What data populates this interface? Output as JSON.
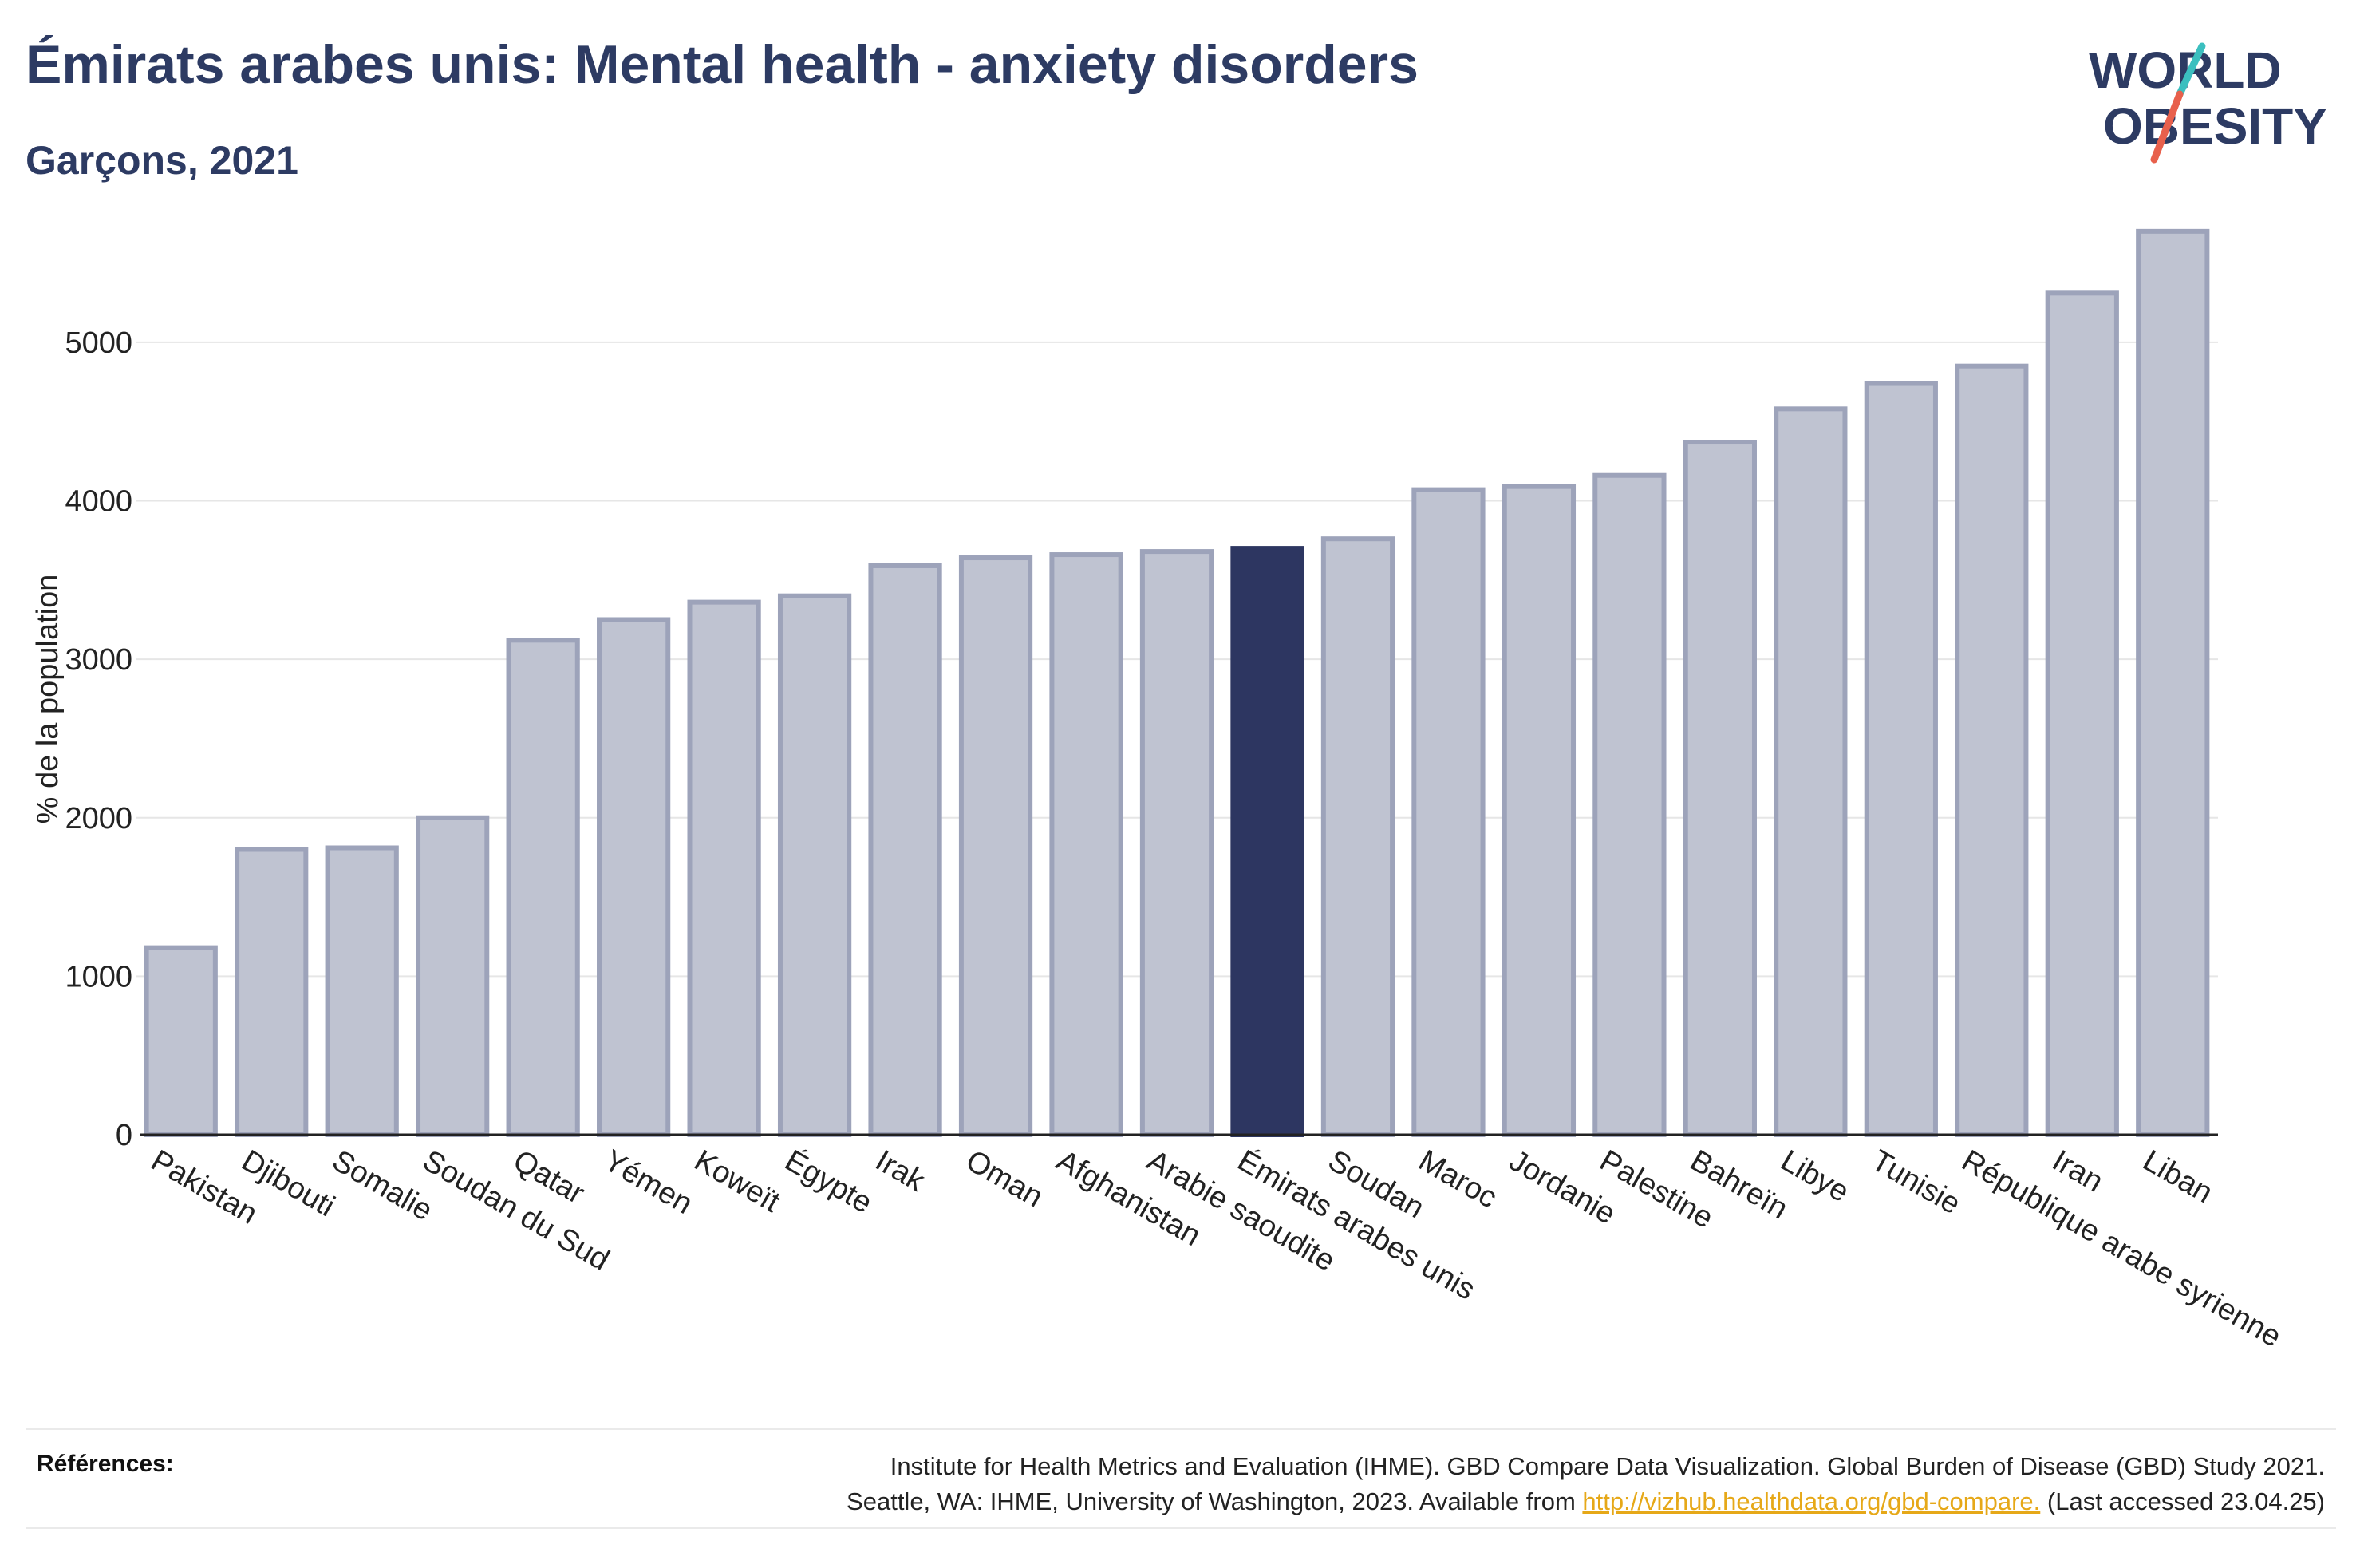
{
  "header": {
    "title": "Émirats arabes unis: Mental health - anxiety disorders",
    "subtitle": "Garçons, 2021"
  },
  "logo": {
    "line1": "WORLD",
    "line2": "OBESITY",
    "colors": {
      "text": "#2d3b63",
      "slash_red": "#e8604c",
      "slash_teal": "#3bbfbf"
    }
  },
  "chart_data": {
    "type": "bar",
    "ylabel": "% de la population",
    "xlabel": "",
    "ylim": [
      0,
      5800
    ],
    "yticks": [
      0,
      1000,
      2000,
      3000,
      4000,
      5000
    ],
    "grid": true,
    "categories": [
      "Pakistan",
      "Djibouti",
      "Somalie",
      "Soudan du Sud",
      "Qatar",
      "Yémen",
      "Koweït",
      "Égypte",
      "Irak",
      "Oman",
      "Afghanistan",
      "Arabie saoudite",
      "Émirats arabes unis",
      "Soudan",
      "Maroc",
      "Jordanie",
      "Palestine",
      "Bahreïn",
      "Libye",
      "Tunisie",
      "République arabe syrienne",
      "Iran",
      "Liban"
    ],
    "values": [
      1180,
      1800,
      1810,
      2000,
      3120,
      3250,
      3360,
      3400,
      3590,
      3640,
      3660,
      3680,
      3700,
      3760,
      4070,
      4090,
      4160,
      4370,
      4580,
      4740,
      4850,
      5310,
      5700
    ],
    "highlight": "Émirats arabes unis",
    "colors": {
      "bar": "#bfc3d1",
      "bar_border": "#9da3ba",
      "highlight": "#2d3661"
    }
  },
  "references": {
    "label": "Références:",
    "line1": "Institute for Health Metrics and Evaluation (IHME). GBD Compare Data Visualization. Global Burden of Disease (GBD) Study 2021.",
    "line2_prefix": "Seattle, WA: IHME, University of Washington, 2023. Available from ",
    "link": "http://vizhub.healthdata.org/gbd-compare.",
    "line2_suffix": " (Last accessed 23.04.25)"
  }
}
